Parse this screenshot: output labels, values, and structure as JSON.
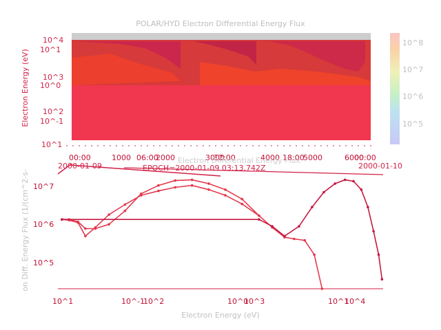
{
  "colors": {
    "panel_red": "#f1364f",
    "curve_magenta": "#c41a42",
    "curve_red": "#e3384c",
    "axis_red": "#d21f45",
    "label_gray": "#c0c0c0",
    "fill_gray": "#cdcdcd"
  },
  "chart_data": [
    {
      "type": "heatmap",
      "title": "POLAR/HYD  Electron Differential Energy Flux",
      "ylabel": "Electron Energy (eV)",
      "y_tick_labels": [
        "10^4",
        "10^1",
        "10^3",
        "10^0",
        "10^2",
        "10^-1",
        "10^1"
      ],
      "x_tick_labels": [
        "00:00",
        "06:00",
        "12:00",
        "18:00",
        "00:00"
      ],
      "x_overlap_labels": [
        "1000",
        "2000",
        "3000",
        "4000",
        "5000",
        "6000"
      ],
      "x_dates": [
        "2000-01-09",
        "2000-01-10"
      ],
      "overlap_text": "Electron Differential Energy Flux",
      "epoch_label": "EPOCH=2000-01-09 03:13.742Z",
      "colorbar_ticks": [
        "10^8",
        "10^7",
        "10^6",
        "10^5"
      ],
      "colorbar_range": [
        100000,
        100000000
      ]
    },
    {
      "type": "line",
      "xlabel": "Electron Energy (eV)",
      "ylabel": "on Diff. Energy Flux (1/(cm^2-s-",
      "x_tick_labels": [
        "10^1",
        "10^-1",
        "10^2",
        "10^0",
        "10^3",
        "10^1",
        "10^4"
      ],
      "y_tick_labels": [
        "10^7",
        "10^6",
        "10^5"
      ],
      "xlim": [
        10,
        20000
      ],
      "ylim": [
        20000,
        20000000
      ],
      "log_x": true,
      "log_y": true,
      "series": [
        {
          "x": [
            11,
            13,
            16,
            19,
            24,
            33,
            48,
            70,
            105,
            155,
            230,
            340,
            500,
            740,
            1100
          ],
          "y": [
            1200000,
            1200000,
            1050000,
            700000,
            700000,
            900000,
            2000000,
            5500000,
            9000000,
            12000000,
            12500000,
            10000000,
            7000000,
            4000000,
            1500000
          ]
        },
        {
          "x": [
            11,
            13,
            16,
            19,
            24,
            33,
            48,
            70,
            105,
            155,
            230,
            340,
            500,
            740,
            1100,
            1500,
            2000,
            2500,
            3200,
            4000,
            4800
          ],
          "y": [
            1200000,
            1150000,
            1000000,
            450000,
            750000,
            1600000,
            2900000,
            5000000,
            6500000,
            8000000,
            9000000,
            7000000,
            5000000,
            3000000,
            1500000,
            750000,
            420000,
            380000,
            350000,
            150000,
            20000
          ]
        },
        {
          "x": [
            11,
            1100,
            1500,
            2000,
            2800,
            3800,
            5000,
            6500,
            8200,
            10000,
            12000,
            14000,
            16000,
            18000,
            19500
          ],
          "y": [
            1200000,
            1200000,
            800000,
            450000,
            800000,
            2500000,
            6000000,
            10000000,
            12500000,
            11500000,
            7000000,
            2500000,
            600000,
            150000,
            35000
          ]
        }
      ]
    }
  ]
}
